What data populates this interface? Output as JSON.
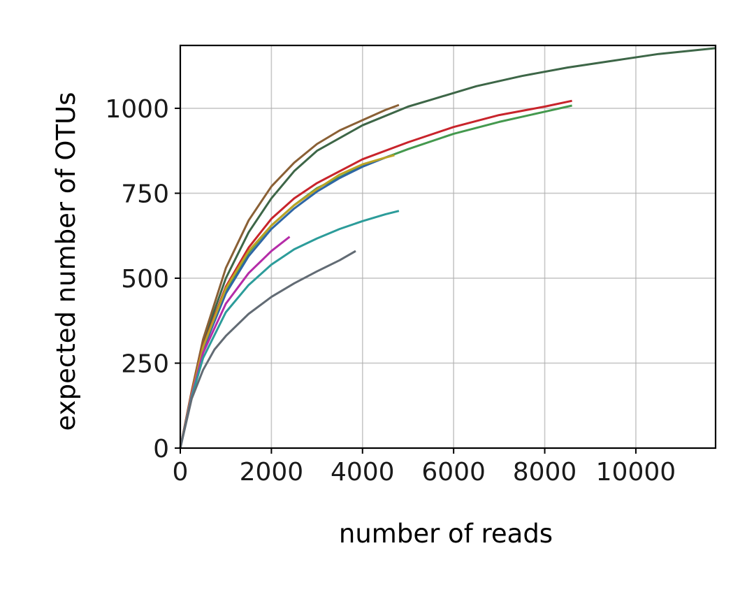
{
  "chart_data": {
    "type": "line",
    "title": "",
    "xlabel": "number of reads",
    "ylabel": "expected number of OTUs",
    "xlim": [
      0,
      11750
    ],
    "ylim": [
      0,
      1185
    ],
    "xticks": [
      0,
      2000,
      4000,
      6000,
      8000,
      10000
    ],
    "xtick_labels": [
      "0",
      "2000",
      "4000",
      "6000",
      "8000",
      "10000"
    ],
    "yticks": [
      0,
      250,
      500,
      750,
      1000
    ],
    "ytick_labels": [
      "0",
      "250",
      "500",
      "750",
      "1000"
    ],
    "grid": true,
    "legend": "none",
    "series": [
      {
        "color": "#3d6647",
        "x": [
          0,
          250,
          500,
          1000,
          1500,
          2000,
          2500,
          3000,
          4000,
          5000,
          5500,
          6500,
          7500,
          8500,
          9500,
          10500,
          11750
        ],
        "y": [
          0,
          165,
          310,
          500,
          635,
          735,
          815,
          875,
          950,
          1005,
          1025,
          1065,
          1095,
          1120,
          1140,
          1160,
          1177
        ]
      },
      {
        "color": "#8a6035",
        "x": [
          0,
          250,
          500,
          1000,
          1500,
          2000,
          2500,
          3000,
          3500,
          4000,
          4500,
          4800
        ],
        "y": [
          0,
          168,
          320,
          530,
          670,
          770,
          840,
          895,
          935,
          965,
          995,
          1010
        ]
      },
      {
        "color": "#c8242b",
        "x": [
          0,
          250,
          500,
          1000,
          1500,
          2000,
          2500,
          3000,
          4000,
          5000,
          6000,
          7000,
          8000,
          8600
        ],
        "y": [
          0,
          165,
          300,
          475,
          590,
          675,
          735,
          780,
          850,
          900,
          945,
          980,
          1005,
          1022
        ]
      },
      {
        "color": "#44994e",
        "x": [
          0,
          250,
          500,
          1000,
          1500,
          2000,
          2500,
          3000,
          4000,
          5000,
          6000,
          7000,
          8000,
          8600
        ],
        "y": [
          0,
          160,
          295,
          465,
          575,
          655,
          715,
          765,
          830,
          880,
          925,
          960,
          990,
          1008
        ]
      },
      {
        "color": "#2e66a5",
        "x": [
          0,
          250,
          500,
          1000,
          1500,
          2000,
          2500,
          3000,
          3500,
          4000,
          4500,
          4600
        ],
        "y": [
          0,
          158,
          290,
          455,
          565,
          645,
          705,
          755,
          795,
          828,
          855,
          860
        ]
      },
      {
        "color": "#bba325",
        "x": [
          0,
          250,
          500,
          1000,
          1500,
          2000,
          2500,
          3000,
          3500,
          4000,
          4500,
          4700
        ],
        "y": [
          0,
          160,
          297,
          470,
          580,
          655,
          715,
          762,
          805,
          835,
          855,
          862
        ]
      },
      {
        "color": "#b52ca8",
        "x": [
          0,
          250,
          500,
          1000,
          1500,
          2000,
          2400
        ],
        "y": [
          0,
          155,
          280,
          425,
          515,
          580,
          622
        ]
      },
      {
        "color": "#2c9c9a",
        "x": [
          0,
          250,
          500,
          1000,
          1500,
          2000,
          2500,
          3000,
          3500,
          4000,
          4500,
          4800
        ],
        "y": [
          0,
          150,
          265,
          400,
          480,
          540,
          585,
          617,
          645,
          668,
          688,
          698
        ]
      },
      {
        "color": "#626b74",
        "x": [
          0,
          250,
          500,
          750,
          1000,
          1500,
          2000,
          2500,
          3000,
          3500,
          3850
        ],
        "y": [
          0,
          145,
          230,
          290,
          330,
          395,
          445,
          485,
          520,
          553,
          580
        ]
      }
    ]
  }
}
